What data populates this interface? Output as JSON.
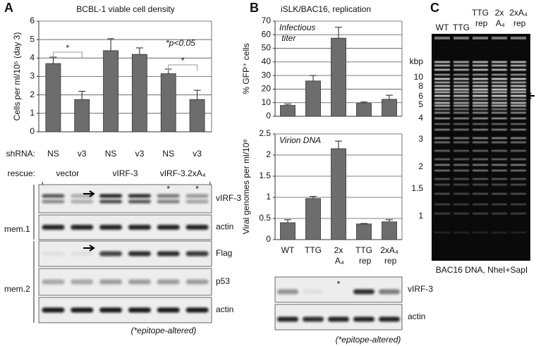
{
  "panels": [
    "A",
    "B",
    "C"
  ],
  "chart_data": [
    {
      "type": "bar",
      "title": "BCBL-1 viable cell density",
      "y_label": "Cells per ml/10⁵ (day 3)",
      "category_label": "shRNA:",
      "categories": [
        "NS",
        "v3",
        "NS",
        "v3",
        "NS",
        "v3"
      ],
      "group_label": "rescue:",
      "groups": [
        "vector",
        "vIRF-3",
        "vIRF-3.2xA₄"
      ],
      "values": [
        3.7,
        1.75,
        4.4,
        4.2,
        3.15,
        1.75
      ],
      "errors": [
        0.35,
        0.45,
        0.65,
        0.35,
        0.25,
        0.5
      ],
      "color": "#6d6d6d",
      "ylim": [
        0,
        6
      ],
      "yticks": [
        0,
        1,
        2,
        3,
        4,
        5,
        6
      ],
      "grid": true,
      "annotations": [
        "*p<0.05",
        "*",
        "*"
      ]
    },
    {
      "type": "bar",
      "title": "iSLK/BAC16, replication",
      "y_label": "% GFP⁺ cells",
      "annotation": "Infectious titer",
      "categories": [
        "WT",
        "TTG",
        "2x A₄",
        "TTG rep",
        "2xA₄ rep"
      ],
      "values": [
        8,
        26,
        57.5,
        9.5,
        12.5
      ],
      "errors": [
        1,
        4,
        8,
        1,
        3
      ],
      "color": "#6d6d6d",
      "ylim": [
        0,
        70
      ],
      "yticks": [
        0,
        10,
        20,
        30,
        40,
        50,
        60,
        70
      ],
      "grid": true
    },
    {
      "type": "bar",
      "y_label": "Viral genomes per ml/10⁸",
      "annotation": "Virion DNA",
      "categories": [
        "WT",
        "TTG",
        "2x A₄",
        "TTG rep",
        "2xA₄ rep"
      ],
      "values": [
        0.4,
        0.97,
        2.15,
        0.37,
        0.42
      ],
      "errors": [
        0.07,
        0.05,
        0.18,
        0.01,
        0.05
      ],
      "color": "#6d6d6d",
      "ylim": [
        0,
        2.5
      ],
      "yticks": [
        0,
        0.5,
        1,
        1.5,
        2,
        2.5
      ],
      "grid": true
    }
  ],
  "blots_a": {
    "rows": [
      "vIRF-3",
      "actin",
      "Flag",
      "p53",
      "actin"
    ],
    "membranes": [
      "mem.1",
      "mem.2"
    ],
    "marks": [
      "*",
      "*"
    ],
    "note": "(*epitope-altered)"
  },
  "blots_b": {
    "rows": [
      "vIRF-3",
      "actin"
    ],
    "marks": [
      "*"
    ],
    "note": "(*epitope-altered)"
  },
  "gel": {
    "lanes": [
      "WT",
      "TTG",
      "TTG rep",
      "2x A₄",
      "2xA₄ rep"
    ],
    "unit": "kbp",
    "sizes": [
      10,
      8,
      6,
      5,
      4,
      3,
      2,
      1.5,
      1
    ],
    "caption": "BAC16 DNA, NheI+SapI"
  }
}
